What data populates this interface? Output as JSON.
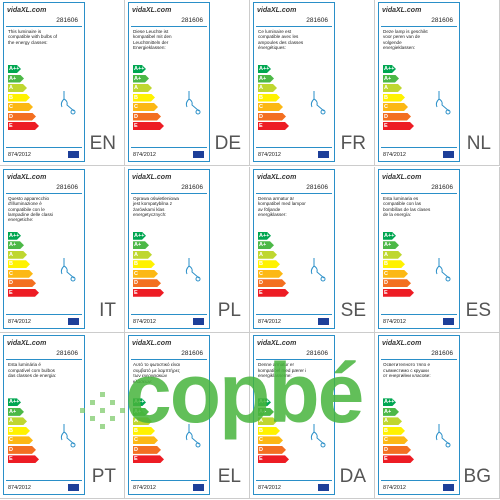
{
  "classes": [
    "A++",
    "A+",
    "A",
    "B",
    "C",
    "D",
    "E"
  ],
  "cells": [
    {
      "logo": "vidaXL.com",
      "code": "281606",
      "text": "This luminaire is compatible with bulbs of the energy classes:",
      "regulation": "874/2012",
      "lang": "EN"
    },
    {
      "logo": "vidaXL.com",
      "code": "281606",
      "text": "Diese Leuchte ist kompatibel mit den Leuchtmitteln der Energieklassen:",
      "regulation": "874/2012",
      "lang": "DE"
    },
    {
      "logo": "vidaXL.com",
      "code": "281606",
      "text": "Ce luminaire est compatible avec les ampoules des classes énergétiques:",
      "regulation": "874/2012",
      "lang": "FR"
    },
    {
      "logo": "vidaXL.com",
      "code": "281606",
      "text": "Deze lamp is geschikt voor peren van de volgende energieklassen:",
      "regulation": "874/2012",
      "lang": "NL"
    },
    {
      "logo": "vidaXL.com",
      "code": "281606",
      "text": "Questo apparecchio d'illuminazione è compatibile con le lampadine delle classi energetiche:",
      "regulation": "874/2012",
      "lang": "IT"
    },
    {
      "logo": "vidaXL.com",
      "code": "281606",
      "text": "Oprawa oświetleniowa jest kompatybilna z żarówkami klas energetycznych:",
      "regulation": "874/2012",
      "lang": "PL"
    },
    {
      "logo": "vidaXL.com",
      "code": "281606",
      "text": "Denna armatur är kompatibel med lampor av följande energiklasser:",
      "regulation": "874/2012",
      "lang": "SE"
    },
    {
      "logo": "vidaXL.com",
      "code": "281606",
      "text": "Esta luminaria es compatible con las bombillas de las clases de la energía:",
      "regulation": "874/2012",
      "lang": "ES"
    },
    {
      "logo": "vidaXL.com",
      "code": "281606",
      "text": "Esta luminária é compatível com bulbos das classes de energia:",
      "regulation": "874/2012",
      "lang": "PT"
    },
    {
      "logo": "vidaXL.com",
      "code": "281606",
      "text": "Αυτό το φωτιστικό είναι συμβατό με λαμπτήρες των ενεργειακών κλάσεων:",
      "regulation": "874/2012",
      "lang": "EL"
    },
    {
      "logo": "vidaXL.com",
      "code": "281606",
      "text": "Denne armatur er kompatibel med pærer i energiklasserne:",
      "regulation": "874/2012",
      "lang": "DA"
    },
    {
      "logo": "vidaXL.com",
      "code": "281606",
      "text": "Осветителното тяло е съвместимо с крушки от енергийни класове:",
      "regulation": "874/2012",
      "lang": "BG"
    }
  ],
  "watermark": "copbé"
}
